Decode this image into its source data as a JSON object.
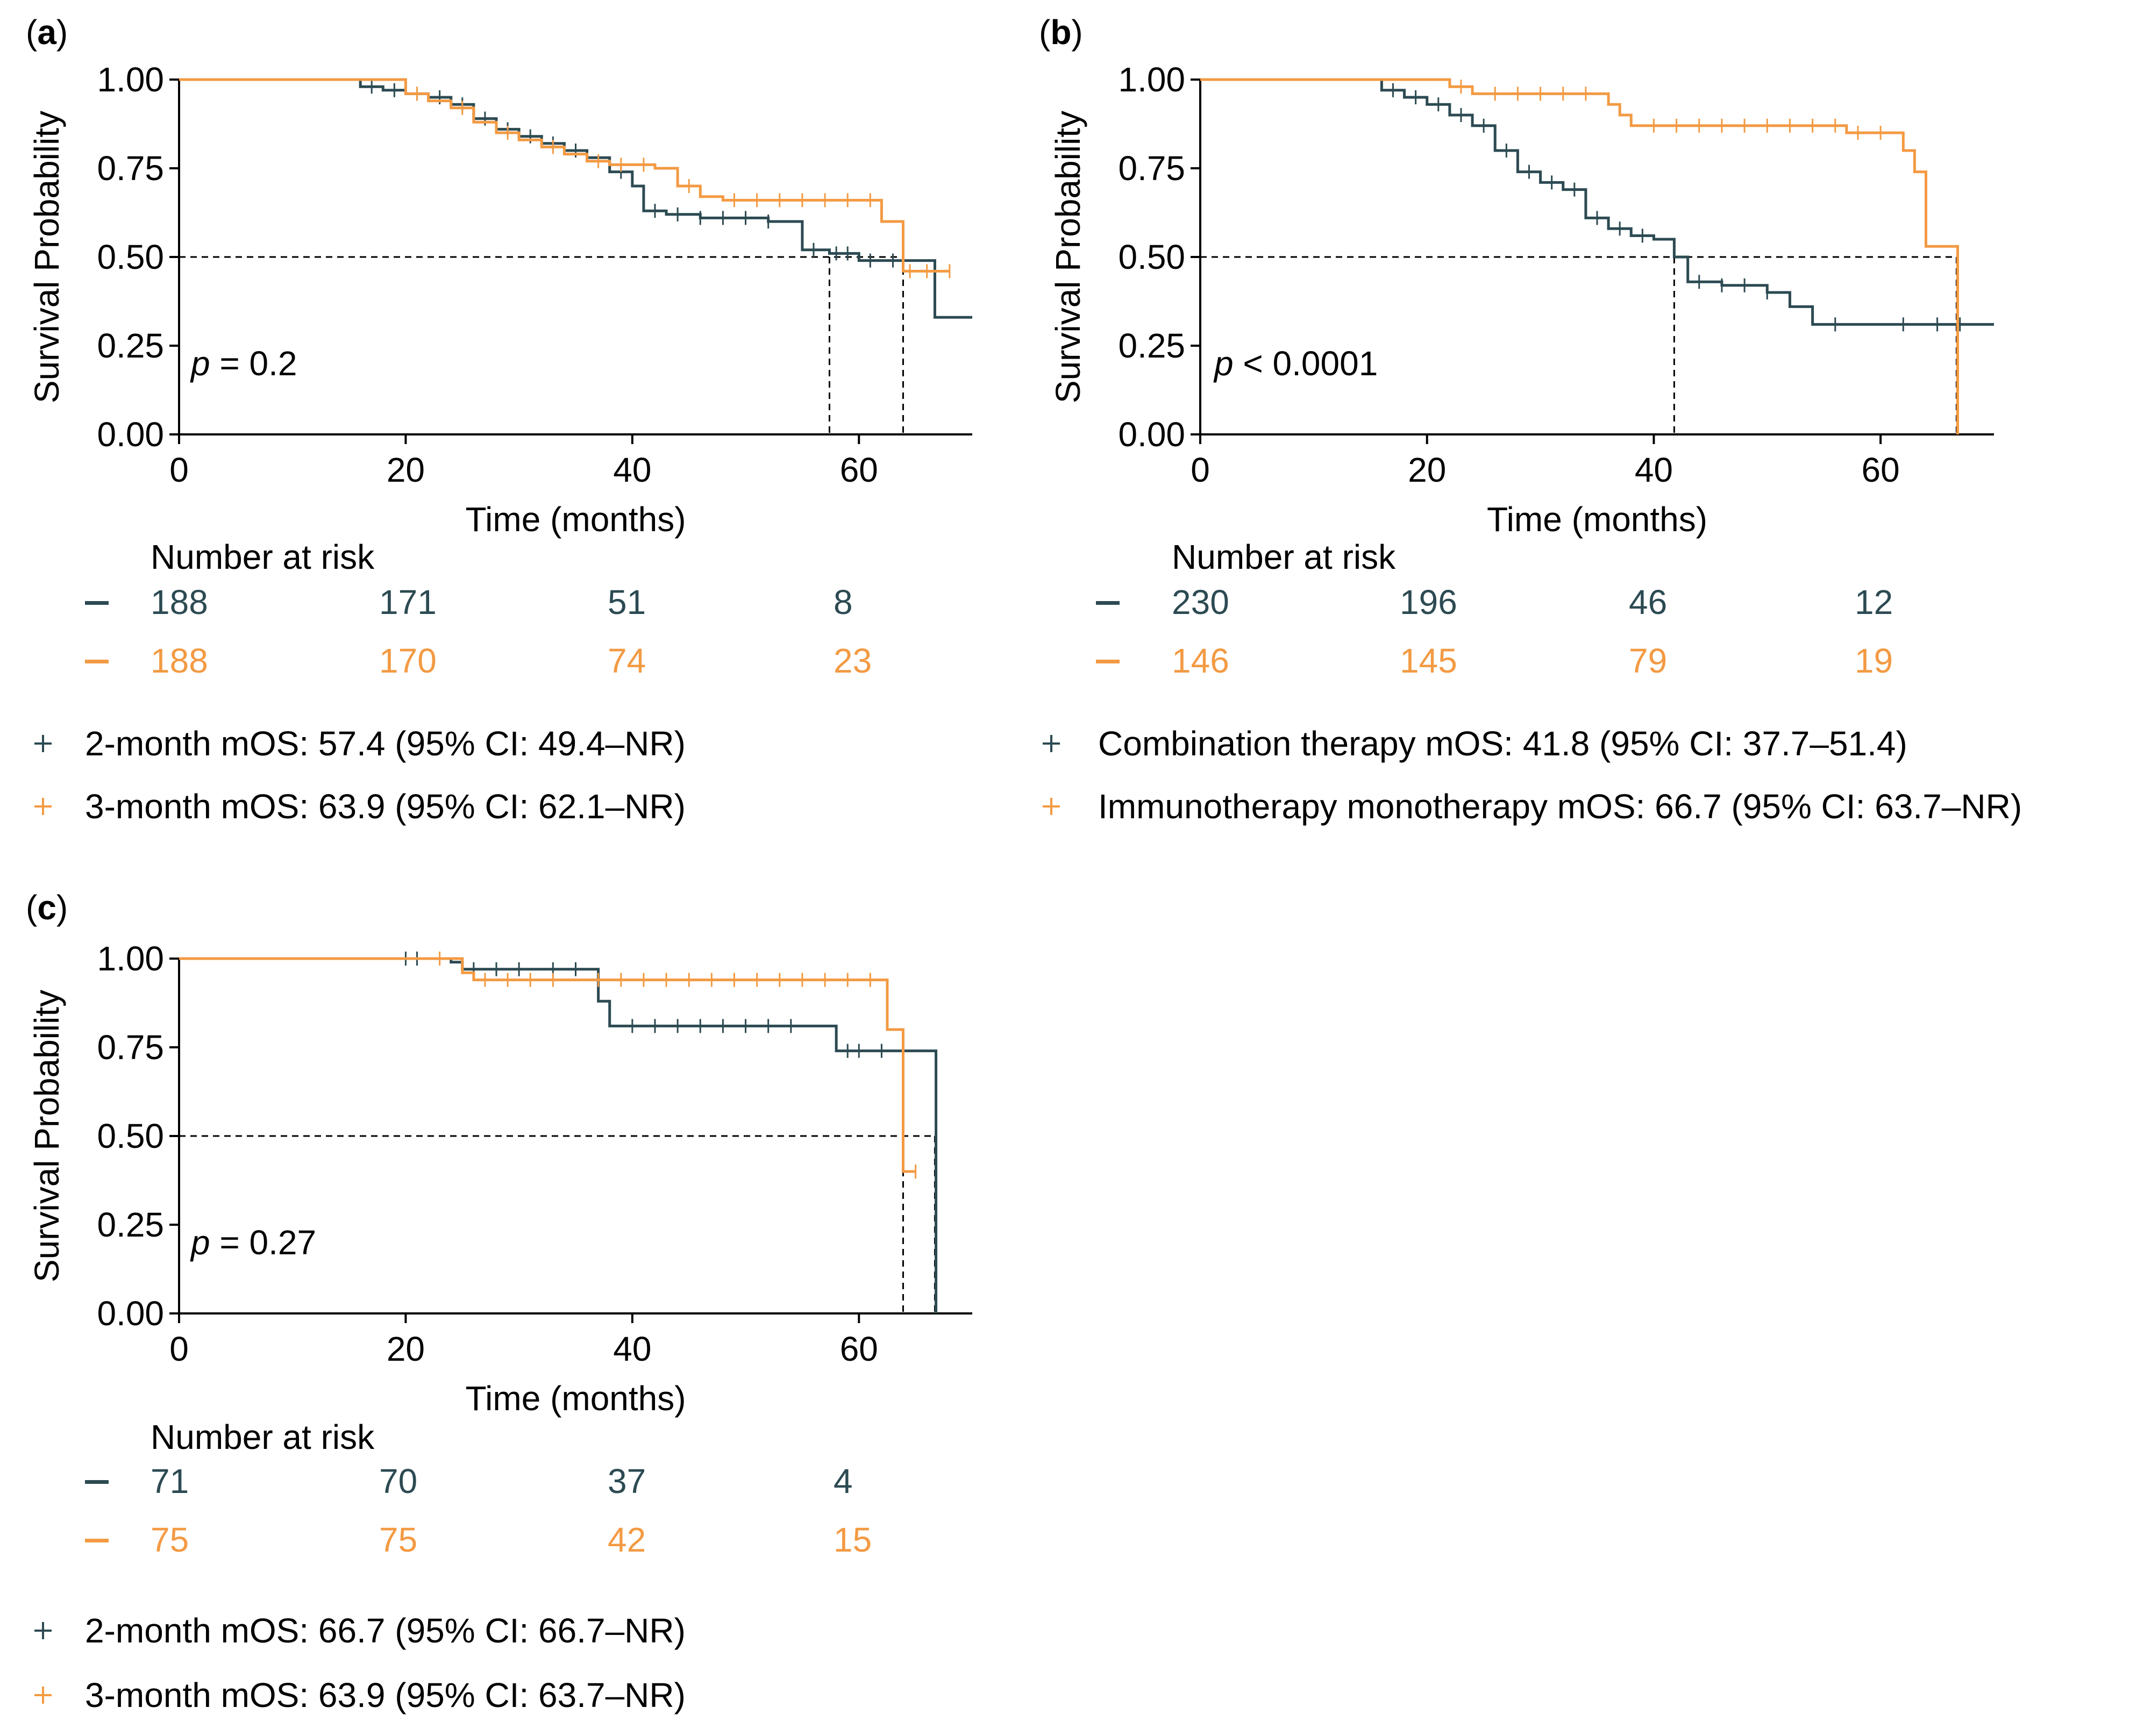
{
  "colors": {
    "dark": "#2c4a52",
    "orange": "#f39a43",
    "axis": "#000000"
  },
  "chart_data": [
    {
      "panel_label": "a",
      "type": "line",
      "subtype": "kaplan-meier",
      "xlabel": "Time (months)",
      "ylabel": "Survival Probability",
      "xlim": [
        0,
        70
      ],
      "ylim": [
        0,
        1
      ],
      "xticks": [
        0,
        20,
        40,
        60
      ],
      "yticks": [
        "0.00",
        "0.25",
        "0.50",
        "0.75",
        "1.00"
      ],
      "annotation": {
        "p_label": "p",
        "p_rest": " = 0.2"
      },
      "median_line": 0.5,
      "medians": [
        57.4,
        63.9
      ],
      "risk_table": {
        "title": "Number at risk",
        "rows": [
          {
            "marker": "–",
            "values": [
              "188",
              "171",
              "51",
              "8"
            ]
          },
          {
            "marker": "–",
            "values": [
              "188",
              "170",
              "74",
              "23"
            ]
          }
        ]
      },
      "legend": [
        {
          "marker": "+",
          "text": "2-month mOS: 57.4 (95% CI: 49.4–NR)"
        },
        {
          "marker": "+",
          "text": "3-month mOS: 63.9 (95% CI: 62.1–NR)"
        }
      ],
      "series": [
        {
          "color_key": "dark",
          "x": [
            0,
            13,
            16,
            18,
            20,
            22,
            24,
            26,
            28,
            30,
            32,
            34,
            36,
            38,
            40,
            41,
            43,
            46,
            50,
            52,
            55,
            57.4,
            60,
            62,
            64,
            66.7,
            70
          ],
          "y": [
            1.0,
            1.0,
            0.98,
            0.97,
            0.96,
            0.95,
            0.93,
            0.89,
            0.86,
            0.84,
            0.82,
            0.8,
            0.78,
            0.74,
            0.7,
            0.63,
            0.62,
            0.61,
            0.61,
            0.6,
            0.52,
            0.51,
            0.49,
            0.49,
            0.49,
            0.33,
            0.33
          ],
          "censor": [
            17,
            19,
            21,
            23,
            25,
            27,
            29,
            31,
            33,
            35,
            39,
            42,
            44,
            46,
            48,
            50,
            52,
            56,
            58,
            59,
            61,
            63
          ]
        },
        {
          "color_key": "orange",
          "x": [
            0,
            16,
            20,
            22,
            24,
            26,
            28,
            30,
            32,
            34,
            36,
            38,
            40,
            42,
            44,
            46,
            48,
            60,
            62,
            63.9,
            65,
            68
          ],
          "y": [
            1.0,
            1.0,
            0.96,
            0.94,
            0.92,
            0.88,
            0.85,
            0.83,
            0.81,
            0.79,
            0.77,
            0.76,
            0.76,
            0.75,
            0.7,
            0.67,
            0.66,
            0.66,
            0.6,
            0.46,
            0.46,
            0.46
          ],
          "censor": [
            21,
            25,
            29,
            33,
            37,
            39,
            41,
            45,
            49,
            51,
            53,
            55,
            57,
            59,
            61,
            64.5,
            66,
            68
          ]
        }
      ]
    },
    {
      "panel_label": "b",
      "type": "line",
      "subtype": "kaplan-meier",
      "xlabel": "Time (months)",
      "ylabel": "Survival Probability",
      "xlim": [
        0,
        70
      ],
      "ylim": [
        0,
        1
      ],
      "xticks": [
        0,
        20,
        40,
        60
      ],
      "yticks": [
        "0.00",
        "0.25",
        "0.50",
        "0.75",
        "1.00"
      ],
      "annotation": {
        "p_label": "p",
        "p_rest": " < 0.0001"
      },
      "median_line": 0.5,
      "medians": [
        41.8,
        66.7
      ],
      "risk_table": {
        "title": "Number at risk",
        "rows": [
          {
            "marker": "–",
            "values": [
              "230",
              "196",
              "46",
              "12"
            ]
          },
          {
            "marker": "–",
            "values": [
              "146",
              "145",
              "79",
              "19"
            ]
          }
        ]
      },
      "legend": [
        {
          "marker": "+",
          "text": "Combination therapy mOS: 41.8 (95% CI: 37.7–51.4)"
        },
        {
          "marker": "+",
          "text": "Immunotherapy monotherapy mOS: 66.7 (95% CI: 63.7–NR)"
        }
      ],
      "series": [
        {
          "color_key": "dark",
          "x": [
            0,
            13,
            16,
            18,
            20,
            22,
            24,
            26,
            28,
            30,
            32,
            34,
            36,
            38,
            40,
            41.8,
            43,
            46,
            50,
            52,
            54,
            60,
            70
          ],
          "y": [
            1.0,
            1.0,
            0.97,
            0.95,
            0.93,
            0.9,
            0.87,
            0.8,
            0.74,
            0.71,
            0.69,
            0.61,
            0.58,
            0.56,
            0.55,
            0.5,
            0.43,
            0.42,
            0.4,
            0.36,
            0.31,
            0.31,
            0.31
          ],
          "censor": [
            17,
            19,
            21,
            23,
            25,
            27,
            29,
            31,
            33,
            35,
            37,
            39,
            44,
            46,
            48,
            50,
            56,
            62,
            65,
            67
          ]
        },
        {
          "color_key": "orange",
          "x": [
            0,
            20,
            22,
            24,
            35,
            36,
            37,
            38,
            55,
            57,
            60,
            62,
            63,
            64,
            66.7,
            66.8
          ],
          "y": [
            1.0,
            1.0,
            0.98,
            0.96,
            0.96,
            0.93,
            0.9,
            0.87,
            0.87,
            0.85,
            0.85,
            0.8,
            0.74,
            0.53,
            0.53,
            0.0
          ],
          "censor": [
            23,
            26,
            28,
            30,
            32,
            34,
            40,
            42,
            44,
            46,
            48,
            50,
            52,
            54,
            56,
            58,
            60
          ]
        }
      ]
    },
    {
      "panel_label": "c",
      "type": "line",
      "subtype": "kaplan-meier",
      "xlabel": "Time (months)",
      "ylabel": "Survival Probability",
      "xlim": [
        0,
        70
      ],
      "ylim": [
        0,
        1
      ],
      "xticks": [
        0,
        20,
        40,
        60
      ],
      "yticks": [
        "0.00",
        "0.25",
        "0.50",
        "0.75",
        "1.00"
      ],
      "annotation": {
        "p_label": "p",
        "p_rest": " = 0.27"
      },
      "median_line": 0.5,
      "medians": [
        66.7,
        63.9
      ],
      "risk_table": {
        "title": "Number at risk",
        "rows": [
          {
            "marker": "–",
            "values": [
              "71",
              "70",
              "37",
              "4"
            ]
          },
          {
            "marker": "–",
            "values": [
              "75",
              "75",
              "42",
              "15"
            ]
          }
        ]
      },
      "legend": [
        {
          "marker": "+",
          "text": "2-month mOS: 66.7 (95% CI: 66.7–NR)"
        },
        {
          "marker": "+",
          "text": "3-month mOS: 63.9 (95% CI: 63.7–NR)"
        }
      ],
      "series": [
        {
          "color_key": "dark",
          "x": [
            0,
            20,
            24,
            25,
            36,
            37,
            38,
            57,
            58,
            66.7,
            66.8
          ],
          "y": [
            1.0,
            1.0,
            0.99,
            0.97,
            0.97,
            0.88,
            0.81,
            0.81,
            0.74,
            0.74,
            0.0
          ],
          "censor": [
            20,
            21,
            26,
            28,
            30,
            33,
            35,
            40,
            42,
            44,
            46,
            48,
            50,
            52,
            54,
            59,
            60,
            62
          ]
        },
        {
          "color_key": "orange",
          "x": [
            0,
            22,
            25,
            26,
            62,
            62.5,
            63.5,
            63.9,
            65
          ],
          "y": [
            1.0,
            1.0,
            0.96,
            0.94,
            0.94,
            0.8,
            0.8,
            0.4,
            0.4
          ],
          "censor": [
            23,
            27,
            29,
            31,
            33,
            37,
            39,
            41,
            43,
            45,
            47,
            49,
            51,
            53,
            55,
            57,
            59,
            61,
            65
          ]
        }
      ]
    }
  ]
}
